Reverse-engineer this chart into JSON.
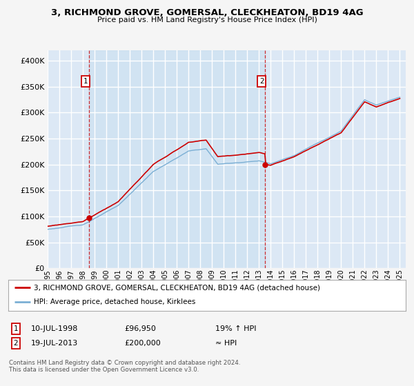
{
  "title": "3, RICHMOND GROVE, GOMERSAL, CLECKHEATON, BD19 4AG",
  "subtitle": "Price paid vs. HM Land Registry's House Price Index (HPI)",
  "bg_color": "#dce8f5",
  "grid_color": "#ffffff",
  "ylim": [
    0,
    420000
  ],
  "yticks": [
    0,
    50000,
    100000,
    150000,
    200000,
    250000,
    300000,
    350000,
    400000
  ],
  "transaction1_date": 1998.54,
  "transaction1_price": 96950,
  "transaction2_date": 2013.54,
  "transaction2_price": 200000,
  "legend_line1": "3, RICHMOND GROVE, GOMERSAL, CLECKHEATON, BD19 4AG (detached house)",
  "legend_line2": "HPI: Average price, detached house, Kirklees",
  "annotation1_text1": "10-JUL-1998",
  "annotation1_text2": "£96,950",
  "annotation1_text3": "19% ↑ HPI",
  "annotation2_text1": "19-JUL-2013",
  "annotation2_text2": "£200,000",
  "annotation2_text3": "≈ HPI",
  "footer": "Contains HM Land Registry data © Crown copyright and database right 2024.\nThis data is licensed under the Open Government Licence v3.0.",
  "line_red": "#cc0000",
  "line_blue": "#7bafd4",
  "xtick_years": [
    "1995",
    "1996",
    "1997",
    "1998",
    "1999",
    "2000",
    "2001",
    "2002",
    "2003",
    "2004",
    "2005",
    "2006",
    "2007",
    "2008",
    "2009",
    "2010",
    "2011",
    "2012",
    "2013",
    "2014",
    "2015",
    "2016",
    "2017",
    "2018",
    "2019",
    "2020",
    "2021",
    "2022",
    "2023",
    "2024",
    "2025"
  ]
}
